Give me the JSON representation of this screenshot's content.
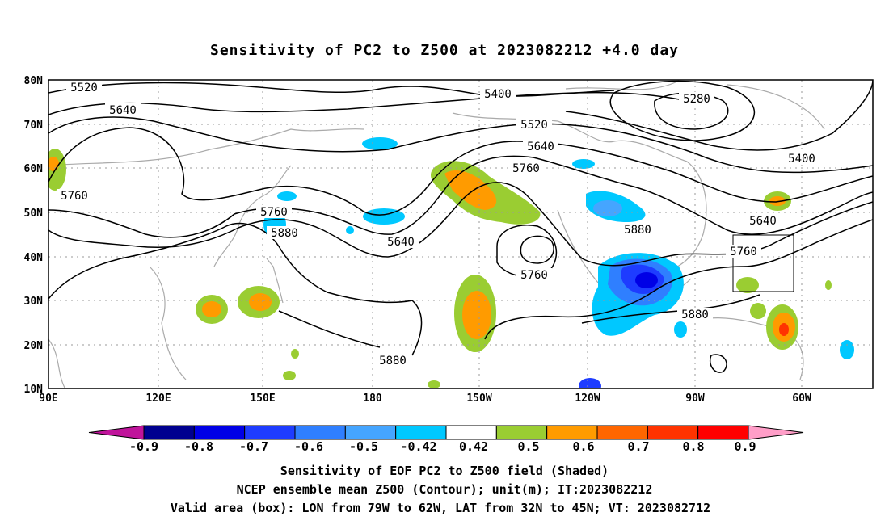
{
  "title": "Sensitivity of PC2 to Z500 at 2023082212 +4.0 day",
  "axes": {
    "lat_labels": [
      "80N",
      "70N",
      "60N",
      "50N",
      "40N",
      "30N",
      "20N",
      "10N"
    ],
    "lon_labels": [
      "90E",
      "120E",
      "150E",
      "180",
      "150W",
      "120W",
      "90W",
      "60W"
    ]
  },
  "contour_labels": [
    "5520",
    "5640",
    "5400",
    "5280",
    "5520",
    "5640",
    "5400",
    "5760",
    "5760",
    "5640",
    "5760",
    "5880",
    "5640",
    "5760",
    "5880",
    "5760",
    "5880",
    "5880"
  ],
  "colorbar": {
    "ticks": [
      "-0.9",
      "-0.8",
      "-0.7",
      "-0.6",
      "-0.5",
      "-0.42",
      "0.42",
      "0.5",
      "0.6",
      "0.7",
      "0.8",
      "0.9"
    ],
    "colors": [
      "#c0149b",
      "#00008f",
      "#0000e6",
      "#1e3cff",
      "#2f7fff",
      "#45a5ff",
      "#00c8ff",
      "#ffffff",
      "#9acd32",
      "#ff9b00",
      "#ff6600",
      "#ff3300",
      "#ff0000",
      "#ff9ec8"
    ]
  },
  "captions": [
    "Sensitivity of EOF PC2 to Z500 field (Shaded)",
    "NCEP ensemble mean Z500 (Contour); unit(m); IT:2023082212",
    "Valid area (box): LON from 79W to 62W, LAT from 32N to 45N; VT: 2023082712"
  ],
  "chart_data": {
    "type": "map",
    "projection": "cylindrical equidistant",
    "lon_range": [
      "90E",
      "45W"
    ],
    "lat_range": [
      "10N",
      "80N"
    ],
    "shaded_field": "Sensitivity of EOF PC2 to Z500",
    "contour_field": "Z500 (m)",
    "contour_levels": [
      5280,
      5400,
      5520,
      5640,
      5760,
      5880
    ],
    "valid_box": {
      "lon": [
        "79W",
        "62W"
      ],
      "lat": [
        "32N",
        "45N"
      ]
    },
    "grid": true
  }
}
